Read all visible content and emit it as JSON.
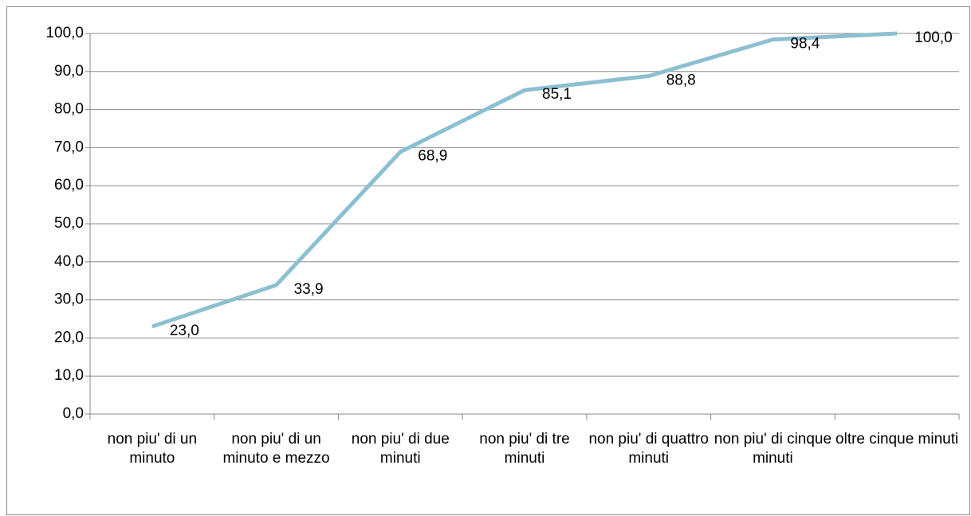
{
  "chart_data": {
    "type": "line",
    "categories": [
      "non piu' di un minuto",
      "non piu' di un minuto e mezzo",
      "non piu' di due minuti",
      "non piu' di tre minuti",
      "non piu' di quattro minuti",
      "non piu' di cinque minuti",
      "oltre cinque minuti"
    ],
    "series": [
      {
        "color": "#8cbfd2",
        "values": [
          23.0,
          33.9,
          68.9,
          85.1,
          88.8,
          98.4,
          100.0
        ],
        "value_labels": [
          "23,0",
          "33,9",
          "68,9",
          "85,1",
          "88,8",
          "98,4",
          "100,0"
        ]
      }
    ],
    "ylim": [
      0,
      100
    ],
    "yticks": [
      {
        "value": 0,
        "label": "0,0"
      },
      {
        "value": 10,
        "label": "10,0"
      },
      {
        "value": 20,
        "label": "20,0"
      },
      {
        "value": 30,
        "label": "30,0"
      },
      {
        "value": 40,
        "label": "40,0"
      },
      {
        "value": 50,
        "label": "50,0"
      },
      {
        "value": 60,
        "label": "60,0"
      },
      {
        "value": 70,
        "label": "70,0"
      },
      {
        "value": 80,
        "label": "80,0"
      },
      {
        "value": 90,
        "label": "90,0"
      },
      {
        "value": 100,
        "label": "100,0"
      }
    ],
    "grid": true
  }
}
